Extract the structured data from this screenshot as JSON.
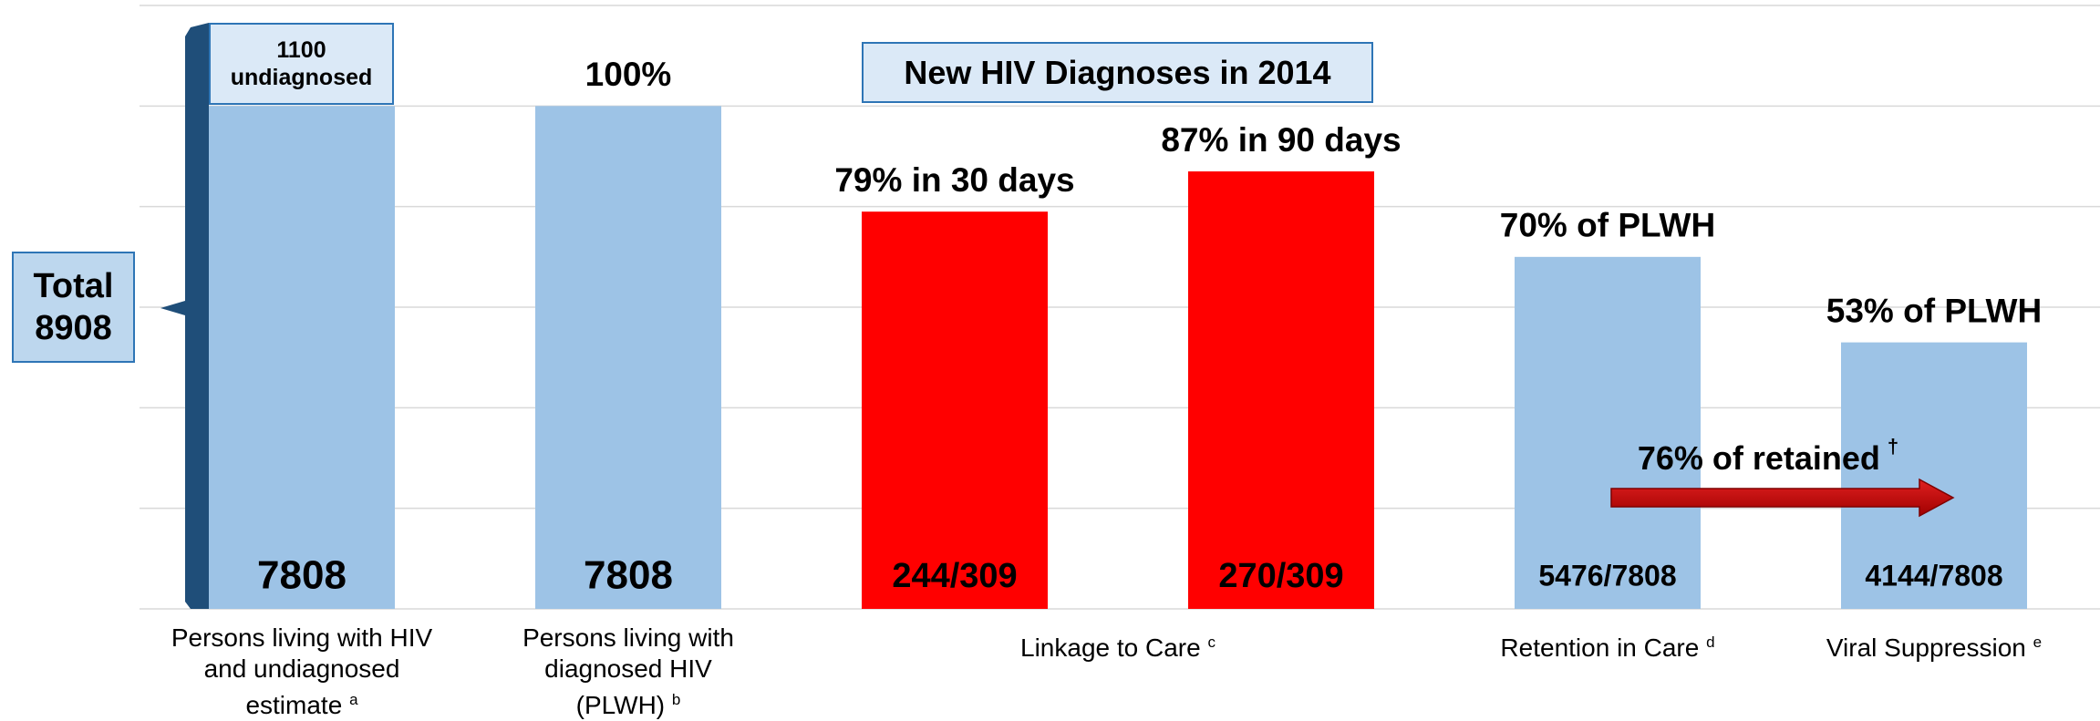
{
  "chart_data": {
    "type": "bar",
    "categories": [
      "Persons living with HIV and undiagnosed estimate",
      "Persons living with diagnosed HIV (PLWH)",
      "Linkage to Care",
      null,
      "Retention in Care",
      "Viral Suppression"
    ],
    "category_notes": [
      "a",
      "b",
      "c",
      null,
      "d",
      "e"
    ],
    "values": [
      100,
      100,
      79,
      87,
      70,
      53
    ],
    "value_labels": [
      null,
      "100%",
      "79% in 30 days",
      "87% in 90 days",
      "70% of PLWH",
      "53% of PLWH"
    ],
    "bar_labels": [
      "7808",
      "7808",
      "244/309",
      "270/309",
      "5476/7808",
      "4144/7808"
    ],
    "colors": [
      "#9dc3e6",
      "#9dc3e6",
      "#ff0000",
      "#ff0000",
      "#9dc3e6",
      "#9dc3e6"
    ],
    "ylim": [
      0,
      120
    ],
    "yticks": [
      0,
      20,
      40,
      60,
      80,
      100,
      120
    ],
    "grid": true,
    "annotations": {
      "title_box": "New HIV Diagnoses in 2014",
      "undiagnosed": "1100 undiagnosed",
      "total": "Total 8908",
      "retained": {
        "text": "76% of retained",
        "mark": "†"
      }
    }
  }
}
